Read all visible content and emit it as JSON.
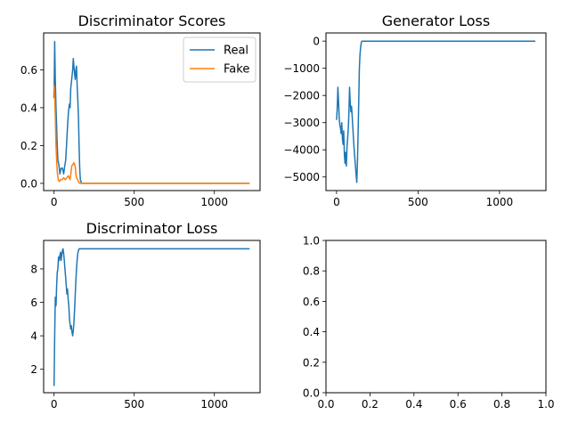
{
  "colors": {
    "real": "#1f77b4",
    "fake": "#ff7f0e",
    "axis": "#000000",
    "background": "#ffffff"
  },
  "chart_data": [
    {
      "type": "line",
      "title": "Discriminator Scores",
      "xlim": [
        -65,
        1285
      ],
      "ylim": [
        -0.038,
        0.795
      ],
      "xticks": [
        0,
        500,
        1000
      ],
      "yticks": [
        0.0,
        0.2,
        0.4,
        0.6
      ],
      "ytick_labels": [
        "0.0",
        "0.2",
        "0.4",
        "0.6"
      ],
      "grid": false,
      "legend_position": "upper right",
      "series": [
        {
          "name": "Real",
          "color_key": "real",
          "x": [
            0,
            4,
            8,
            12,
            16,
            20,
            24,
            30,
            36,
            44,
            52,
            60,
            66,
            72,
            78,
            84,
            90,
            96,
            100,
            104,
            110,
            116,
            120,
            124,
            128,
            132,
            136,
            140,
            144,
            148,
            152,
            156,
            160,
            164,
            168,
            172,
            200,
            400,
            600,
            800,
            1000,
            1220
          ],
          "y": [
            0.45,
            0.75,
            0.55,
            0.4,
            0.3,
            0.2,
            0.12,
            0.1,
            0.05,
            0.08,
            0.08,
            0.05,
            0.09,
            0.12,
            0.2,
            0.3,
            0.38,
            0.42,
            0.4,
            0.5,
            0.55,
            0.6,
            0.66,
            0.62,
            0.58,
            0.55,
            0.6,
            0.62,
            0.52,
            0.45,
            0.35,
            0.2,
            0.08,
            0.02,
            0.01,
            0.0,
            0.0,
            0.0,
            0.0,
            0.0,
            0.0,
            0.0
          ]
        },
        {
          "name": "Fake",
          "color_key": "fake",
          "x": [
            0,
            4,
            8,
            12,
            16,
            20,
            26,
            32,
            40,
            50,
            60,
            70,
            80,
            90,
            100,
            106,
            110,
            116,
            120,
            124,
            128,
            132,
            136,
            140,
            146,
            152,
            160,
            170,
            200,
            400,
            600,
            800,
            1000,
            1220
          ],
          "y": [
            0.52,
            0.48,
            0.35,
            0.2,
            0.12,
            0.06,
            0.02,
            0.01,
            0.02,
            0.02,
            0.03,
            0.02,
            0.03,
            0.04,
            0.02,
            0.06,
            0.09,
            0.1,
            0.1,
            0.11,
            0.1,
            0.09,
            0.05,
            0.03,
            0.02,
            0.01,
            0.0,
            0.0,
            0.0,
            0.0,
            0.0,
            0.0,
            0.0,
            0.0
          ]
        }
      ]
    },
    {
      "type": "line",
      "title": "Generator Loss",
      "xlim": [
        -65,
        1285
      ],
      "ylim": [
        -5500,
        300
      ],
      "xticks": [
        0,
        500,
        1000
      ],
      "yticks": [
        0,
        -1000,
        -2000,
        -3000,
        -4000,
        -5000
      ],
      "ytick_labels": [
        "0",
        "−1000",
        "−2000",
        "−3000",
        "−4000",
        "−5000"
      ],
      "grid": false,
      "series": [
        {
          "color_key": "real",
          "x": [
            0,
            4,
            8,
            12,
            16,
            20,
            24,
            28,
            32,
            36,
            40,
            44,
            48,
            52,
            56,
            60,
            64,
            68,
            72,
            76,
            80,
            84,
            88,
            92,
            96,
            100,
            104,
            108,
            112,
            116,
            120,
            124,
            128,
            132,
            136,
            140,
            144,
            148,
            152,
            156,
            160,
            164,
            168,
            172,
            200,
            400,
            600,
            800,
            1000,
            1220
          ],
          "y": [
            -2900,
            -2500,
            -1700,
            -2200,
            -2800,
            -3100,
            -3200,
            -3400,
            -3000,
            -3600,
            -3800,
            -3300,
            -4200,
            -4500,
            -4100,
            -4600,
            -3900,
            -3600,
            -3200,
            -2600,
            -1700,
            -2300,
            -2600,
            -2400,
            -2800,
            -3200,
            -3600,
            -4000,
            -4300,
            -4600,
            -4900,
            -5200,
            -4500,
            -3500,
            -2200,
            -1000,
            -500,
            -200,
            -50,
            0,
            0,
            0,
            0,
            0,
            0,
            0,
            0,
            0,
            0,
            0
          ]
        }
      ]
    },
    {
      "type": "line",
      "title": "Discriminator Loss",
      "xlim": [
        -65,
        1285
      ],
      "ylim": [
        0.6,
        9.7
      ],
      "xticks": [
        0,
        500,
        1000
      ],
      "yticks": [
        2,
        4,
        6,
        8
      ],
      "ytick_labels": [
        "2",
        "4",
        "6",
        "8"
      ],
      "grid": false,
      "series": [
        {
          "color_key": "real",
          "x": [
            0,
            4,
            8,
            12,
            16,
            20,
            24,
            28,
            32,
            36,
            40,
            44,
            48,
            52,
            56,
            60,
            64,
            68,
            72,
            76,
            80,
            84,
            88,
            92,
            96,
            100,
            104,
            108,
            112,
            116,
            120,
            124,
            128,
            132,
            136,
            140,
            144,
            148,
            152,
            156,
            160,
            164,
            168,
            172,
            200,
            400,
            600,
            800,
            1000,
            1220
          ],
          "y": [
            1.0,
            4.0,
            6.3,
            5.8,
            7.0,
            7.8,
            8.0,
            8.7,
            8.5,
            8.8,
            9.0,
            8.5,
            8.8,
            9.1,
            9.2,
            8.9,
            8.5,
            8.0,
            7.5,
            7.0,
            6.5,
            6.8,
            6.2,
            5.8,
            5.0,
            4.7,
            4.4,
            4.6,
            4.2,
            4.0,
            4.3,
            4.8,
            5.5,
            6.5,
            7.3,
            8.0,
            8.5,
            8.9,
            9.1,
            9.2,
            9.2,
            9.2,
            9.2,
            9.2,
            9.2,
            9.2,
            9.2,
            9.2,
            9.2,
            9.2
          ]
        }
      ]
    },
    {
      "type": "line",
      "title": "",
      "xlim": [
        0,
        1
      ],
      "ylim": [
        0,
        1
      ],
      "xticks": [
        0.0,
        0.2,
        0.4,
        0.6,
        0.8,
        1.0
      ],
      "xtick_labels": [
        "0.0",
        "0.2",
        "0.4",
        "0.6",
        "0.8",
        "1.0"
      ],
      "yticks": [
        0.0,
        0.2,
        0.4,
        0.6,
        0.8,
        1.0
      ],
      "ytick_labels": [
        "0.0",
        "0.2",
        "0.4",
        "0.6",
        "0.8",
        "1.0"
      ],
      "grid": false,
      "series": []
    }
  ]
}
